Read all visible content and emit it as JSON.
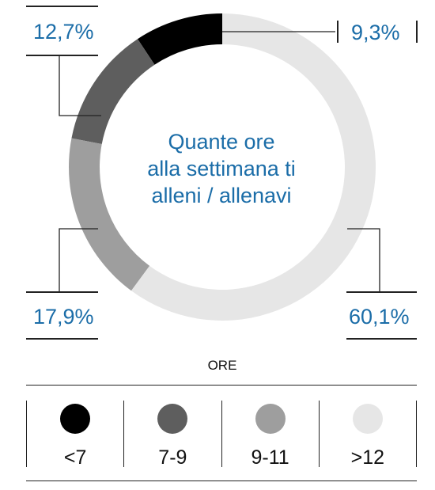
{
  "chart_data": {
    "type": "pie",
    "title": "Quante ore alla settimana ti alleni / allenavi",
    "title_lines": [
      "Quante ore",
      "alla settimana ti",
      "alleni / allenavi"
    ],
    "legend_title": "ORE",
    "legend_placement": "bottom",
    "slices": [
      {
        "label": "<7",
        "value": 9.3,
        "display": "9,3%",
        "color": "#000000"
      },
      {
        "label": "7-9",
        "value": 12.7,
        "display": "12,7%",
        "color": "#5e5e5e"
      },
      {
        "label": "9-11",
        "value": 17.9,
        "display": "17,9%",
        "color": "#9e9e9e"
      },
      {
        "label": ">12",
        "value": 60.1,
        "display": "60,1%",
        "color": "#e6e6e6"
      }
    ]
  },
  "colors": {
    "label_text": "#1b6da8",
    "leader_line": "#222222"
  }
}
